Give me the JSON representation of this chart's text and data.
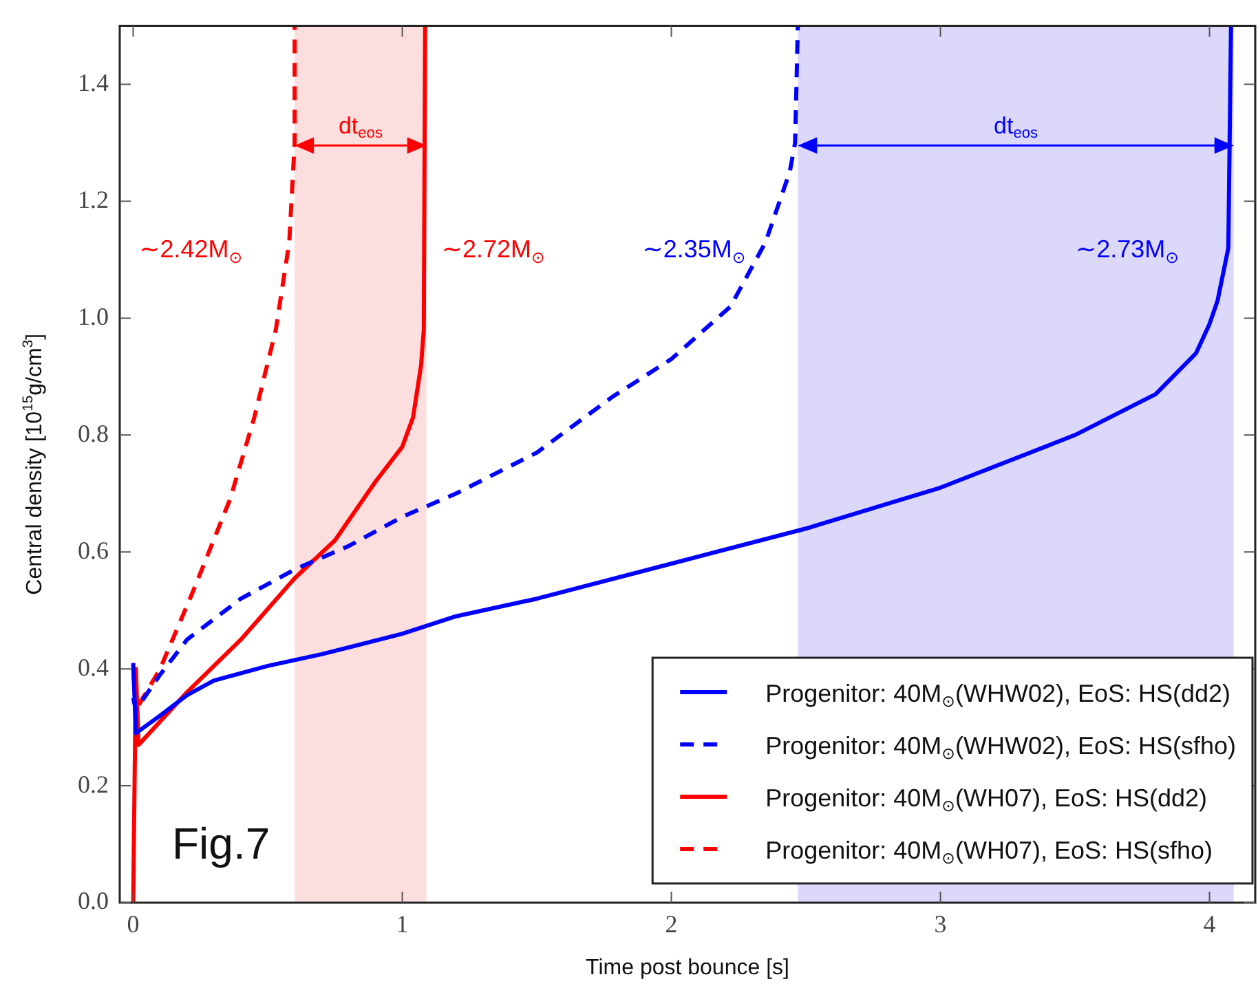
{
  "chart_data": {
    "type": "line",
    "xlabel": "Time post bounce [s]",
    "ylabel": "Central density [10$^{15}$g/cm$^{3}$]",
    "xlim": [
      -0.05,
      4.17
    ],
    "xticks": [
      0,
      1,
      2,
      3,
      4
    ],
    "ylim": [
      0,
      1.5
    ],
    "yticks": [
      {
        "value": 0,
        "label": "0.0"
      },
      {
        "value": 0.2,
        "label": "0.2"
      },
      {
        "value": 0.4,
        "label": "0.4"
      },
      {
        "value": 0.6,
        "label": "0.6"
      },
      {
        "value": 0.8,
        "label": "0.8"
      },
      {
        "value": 1.0,
        "label": "1.0"
      },
      {
        "value": 1.2,
        "label": "1.2"
      },
      {
        "value": 1.4,
        "label": "1.4"
      }
    ],
    "grid": false,
    "marker": "none",
    "legend": "bottom right",
    "series": [
      {
        "name": "Progenitor: 40M$_{⊙}$(WHW02), EoS: HS(dd2)",
        "color": "#0000ff",
        "line_style": "solid",
        "x": [
          0,
          0.01,
          0.1,
          0.2,
          0.3,
          0.5,
          0.7,
          1.0,
          1.2,
          1.5,
          2.0,
          2.5,
          3.0,
          3.5,
          3.8,
          3.95,
          4.0,
          4.03,
          4.07,
          4.08
        ],
        "values": [
          0.41,
          0.29,
          0.32,
          0.355,
          0.38,
          0.405,
          0.425,
          0.46,
          0.49,
          0.52,
          0.58,
          0.64,
          0.71,
          0.8,
          0.87,
          0.94,
          0.99,
          1.03,
          1.12,
          1.5
        ]
      },
      {
        "name": "Progenitor: 40M$_{⊙}$(WHW02), EoS: HS(sfho)",
        "color": "#0000ff",
        "line_style": "dashed",
        "x": [
          0,
          0.01,
          0.1,
          0.2,
          0.4,
          0.6,
          0.8,
          1.0,
          1.2,
          1.5,
          1.78,
          2.0,
          2.22,
          2.35,
          2.44,
          2.46,
          2.47
        ],
        "values": [
          0.35,
          0.33,
          0.39,
          0.45,
          0.52,
          0.57,
          0.61,
          0.66,
          0.7,
          0.77,
          0.865,
          0.93,
          1.02,
          1.13,
          1.25,
          1.3,
          1.5
        ]
      },
      {
        "name": "Progenitor: 40M$_{⊙}$(WH07), EoS: HS(dd2)",
        "color": "#ff0000",
        "line_style": "solid",
        "x": [
          0,
          0.01,
          0.02,
          0.1,
          0.2,
          0.4,
          0.6,
          0.75,
          0.9,
          1.0,
          1.04,
          1.07,
          1.08,
          1.085
        ],
        "values": [
          0,
          0.4,
          0.27,
          0.31,
          0.36,
          0.45,
          0.555,
          0.62,
          0.72,
          0.78,
          0.83,
          0.92,
          0.98,
          1.5
        ]
      },
      {
        "name": "Progenitor: 40M$_{⊙}$(WH07), EoS: HS(sfho)",
        "color": "#ff0000",
        "line_style": "dashed",
        "x": [
          0,
          0.01,
          0.1,
          0.22,
          0.36,
          0.45,
          0.53,
          0.58,
          0.6,
          0.6
        ],
        "values": [
          0.4,
          0.33,
          0.4,
          0.53,
          0.69,
          0.83,
          0.98,
          1.13,
          1.3,
          1.5
        ]
      }
    ],
    "bands": [
      {
        "axis": "x",
        "from": 0.6,
        "to": 1.09,
        "label": "dt$_{eos}$",
        "color": "#fddede"
      },
      {
        "axis": "x",
        "from": 2.47,
        "to": 4.09,
        "label": "dt$_{eos}$",
        "color": "#dcd8fa"
      }
    ],
    "annotations": [
      "∼2.42M$_{⊙}$",
      "∼2.72M$_{⊙}$",
      "∼2.35M$_{⊙}$",
      "∼2.73M$_{⊙}$",
      "Fig.7"
    ]
  }
}
